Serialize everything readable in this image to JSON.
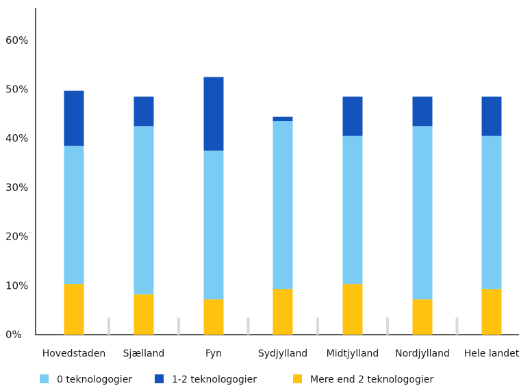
{
  "chart_data": {
    "type": "bar",
    "stacked": true,
    "categories": [
      "Hovedstaden",
      "Sjælland",
      "Fyn",
      "Sydjylland",
      "Midtjylland",
      "Nordjylland",
      "Hele landet"
    ],
    "series": [
      {
        "name": "Mere end 2 teknologogier",
        "color": "#FFC20E",
        "values": [
          10.3,
          8.2,
          7.2,
          9.3,
          10.3,
          7.2,
          9.3
        ]
      },
      {
        "name": "0 teknologogier",
        "color": "#7ACCF5",
        "values": [
          28.2,
          34.3,
          30.3,
          34.2,
          30.2,
          35.3,
          31.2
        ]
      },
      {
        "name": "1-2 teknologogier",
        "color": "#1452BC",
        "values": [
          11.2,
          6.0,
          15.0,
          0.9,
          8.0,
          6.0,
          8.0
        ]
      }
    ],
    "legend_order": [
      "0 teknologogier",
      "1-2 teknologogier",
      "Mere end 2 teknologogier"
    ],
    "yticks": [
      "0%",
      "10%",
      "20%",
      "30%",
      "40%",
      "50%",
      "60%"
    ],
    "ylim": [
      0,
      60
    ],
    "grid": false,
    "legend_position": "bottom"
  }
}
